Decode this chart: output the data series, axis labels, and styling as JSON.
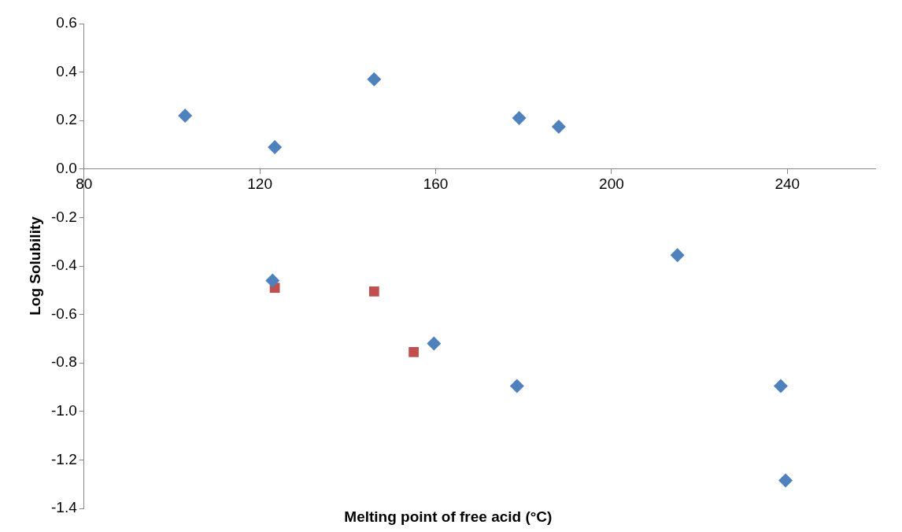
{
  "chart_data": {
    "type": "scatter",
    "xlabel": "Melting point of free acid (°C)",
    "ylabel": "Log Solubility",
    "xlim": [
      80,
      260
    ],
    "xticks": [
      80,
      120,
      160,
      200,
      240
    ],
    "ylim": [
      -1.4,
      0.6
    ],
    "yticks": [
      0.6,
      0.4,
      0.2,
      {
        "value": 0,
        "label": "0.0"
      },
      -0.2,
      -0.4,
      -0.6,
      -0.8,
      {
        "value": -1,
        "label": "-1.0"
      },
      -1.2,
      -1.4
    ],
    "grid": false,
    "legend": false,
    "series": [
      {
        "color": "#4f81bd",
        "marker": "diamond",
        "x": [
          103,
          123.4,
          146,
          179,
          188,
          215,
          122.9,
          159.6,
          178.5,
          238.5,
          239.6
        ],
        "values": [
          0.22,
          0.09,
          0.37,
          0.21,
          0.175,
          -0.355,
          -0.46,
          -0.72,
          -0.895,
          -0.895,
          -1.285
        ]
      },
      {
        "color": "#c0504d",
        "marker": "square",
        "x": [
          123.4,
          146,
          155
        ],
        "values": [
          -0.49,
          -0.505,
          -0.755
        ]
      }
    ]
  }
}
